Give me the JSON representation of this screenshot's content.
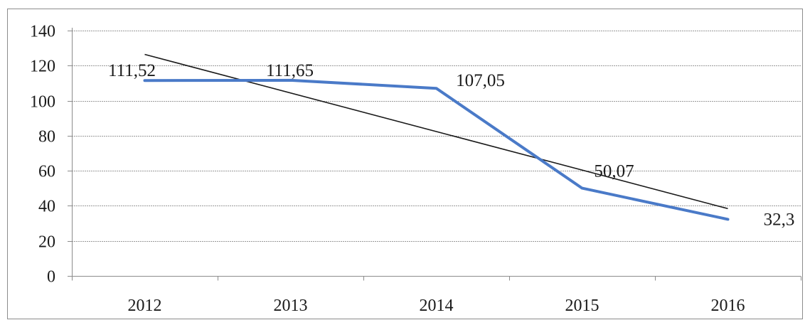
{
  "chart_data": {
    "type": "line",
    "title": "",
    "xlabel": "",
    "ylabel": "",
    "categories": [
      "2012",
      "2013",
      "2014",
      "2015",
      "2016"
    ],
    "series": [
      {
        "values": [
          111.52,
          111.65,
          107.05,
          50.07,
          32.3
        ]
      }
    ],
    "data_labels": [
      "111,52",
      "111,65",
      "107,05",
      "50,07",
      "32,3"
    ],
    "trendline": {
      "type": "linear",
      "start": 126.4,
      "end": 38.4
    },
    "ylim": [
      0,
      140
    ],
    "y_ticks": [
      "0",
      "20",
      "40",
      "60",
      "80",
      "100",
      "120",
      "140"
    ],
    "grid": true,
    "legend": "none",
    "colors": {
      "series": "#4a7ac8",
      "trend": "#1a1a1a",
      "grid": "#9a9a9a",
      "frame": "#8c8c8c",
      "text": "#1a1a1a"
    }
  }
}
